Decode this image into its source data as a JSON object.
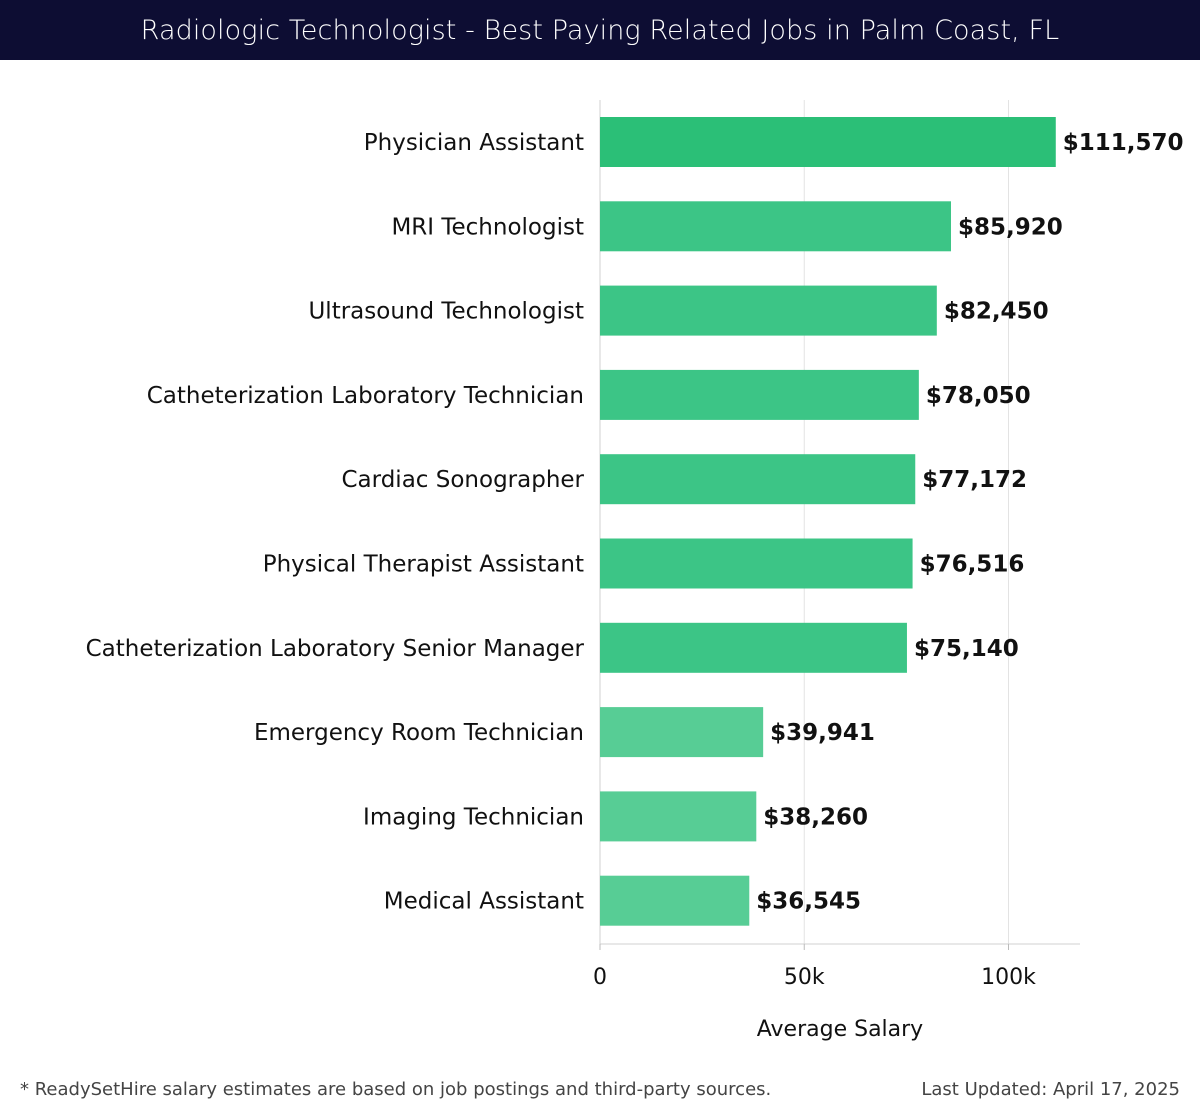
{
  "title": "Radiologic Technologist - Best Paying Related Jobs in Palm Coast, FL",
  "footer": {
    "note": "* ReadySetHire salary estimates are based on job postings and third-party sources.",
    "updated": "Last Updated: April 17, 2025"
  },
  "colors": {
    "title_bg": "#0d0d33",
    "bar_top": "#2bbf77",
    "bar_mid": "#3cc586",
    "bar_low": "#57cd95"
  },
  "chart_data": {
    "type": "bar",
    "orientation": "horizontal",
    "xlabel": "Average Salary",
    "ylabel": "",
    "xlim": [
      0,
      117500
    ],
    "xticks": [
      0,
      50000,
      100000
    ],
    "xtick_labels": [
      "0",
      "50k",
      "100k"
    ],
    "grid": true,
    "categories": [
      "Physician Assistant",
      "MRI Technologist",
      "Ultrasound Technologist",
      "Catheterization Laboratory Technician",
      "Cardiac Sonographer",
      "Physical Therapist Assistant",
      "Catheterization Laboratory Senior Manager",
      "Emergency Room Technician",
      "Imaging Technician",
      "Medical Assistant"
    ],
    "values": [
      111570,
      85920,
      82450,
      78050,
      77172,
      76516,
      75140,
      39941,
      38260,
      36545
    ],
    "value_labels": [
      "$111,570",
      "$85,920",
      "$82,450",
      "$78,050",
      "$77,172",
      "$76,516",
      "$75,140",
      "$39,941",
      "$38,260",
      "$36,545"
    ]
  }
}
